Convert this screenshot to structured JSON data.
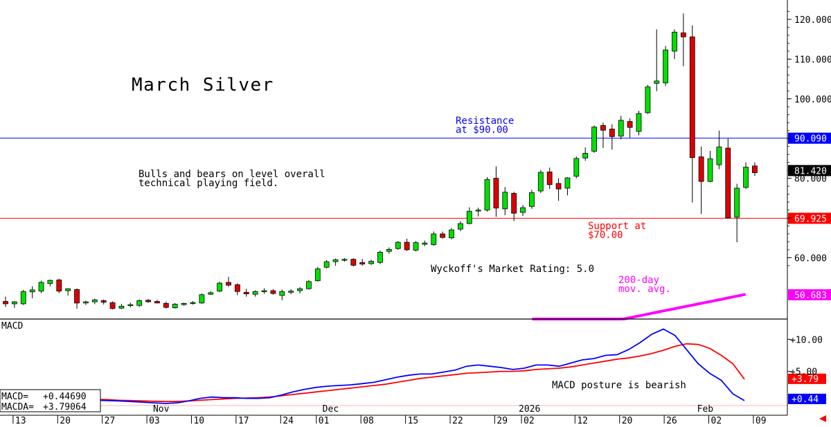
{
  "chart_data": {
    "type": "candlestick",
    "title": "March Silver",
    "price_axis": {
      "ticks": [
        120,
        110,
        100,
        90,
        80,
        70,
        60
      ],
      "tick_labels": [
        "120.000",
        "110.000",
        "100.000",
        "",
        "80.000",
        "",
        "60.000"
      ]
    },
    "candles": [
      {
        "o": 49.0,
        "h": 50.2,
        "l": 47.6,
        "c": 48.4
      },
      {
        "o": 48.4,
        "h": 49.1,
        "l": 47.4,
        "c": 48.9
      },
      {
        "o": 48.4,
        "h": 51.9,
        "l": 48.1,
        "c": 51.5
      },
      {
        "o": 51.4,
        "h": 52.8,
        "l": 49.8,
        "c": 51.9
      },
      {
        "o": 51.6,
        "h": 54.2,
        "l": 51.1,
        "c": 53.8
      },
      {
        "o": 53.5,
        "h": 54.5,
        "l": 52.8,
        "c": 54.3
      },
      {
        "o": 54.4,
        "h": 54.7,
        "l": 51.1,
        "c": 51.6
      },
      {
        "o": 51.7,
        "h": 52.3,
        "l": 50.5,
        "c": 52.2
      },
      {
        "o": 52.0,
        "h": 52.3,
        "l": 47.2,
        "c": 48.6
      },
      {
        "o": 48.6,
        "h": 49.2,
        "l": 48.1,
        "c": 48.9
      },
      {
        "o": 48.9,
        "h": 49.7,
        "l": 48.3,
        "c": 49.4
      },
      {
        "o": 49.2,
        "h": 49.5,
        "l": 48.2,
        "c": 48.8
      },
      {
        "o": 48.7,
        "h": 49.0,
        "l": 47.0,
        "c": 47.2
      },
      {
        "o": 47.3,
        "h": 48.4,
        "l": 47.1,
        "c": 47.8
      },
      {
        "o": 48.2,
        "h": 48.7,
        "l": 47.5,
        "c": 48.2
      },
      {
        "o": 48.0,
        "h": 49.5,
        "l": 47.6,
        "c": 49.2
      },
      {
        "o": 49.3,
        "h": 49.6,
        "l": 48.7,
        "c": 48.9
      },
      {
        "o": 49.0,
        "h": 49.4,
        "l": 48.5,
        "c": 48.6
      },
      {
        "o": 48.5,
        "h": 49.0,
        "l": 47.2,
        "c": 47.5
      },
      {
        "o": 47.4,
        "h": 48.6,
        "l": 47.2,
        "c": 48.3
      },
      {
        "o": 48.2,
        "h": 48.7,
        "l": 47.9,
        "c": 48.5
      },
      {
        "o": 48.5,
        "h": 49.1,
        "l": 48.2,
        "c": 48.7
      },
      {
        "o": 48.6,
        "h": 51.0,
        "l": 48.4,
        "c": 50.7
      },
      {
        "o": 50.8,
        "h": 51.6,
        "l": 50.6,
        "c": 51.2
      },
      {
        "o": 51.6,
        "h": 54.0,
        "l": 51.3,
        "c": 53.6
      },
      {
        "o": 53.8,
        "h": 55.2,
        "l": 52.7,
        "c": 53.1
      },
      {
        "o": 53.2,
        "h": 53.6,
        "l": 50.6,
        "c": 51.5
      },
      {
        "o": 51.3,
        "h": 52.2,
        "l": 50.2,
        "c": 50.9
      },
      {
        "o": 50.8,
        "h": 51.8,
        "l": 50.2,
        "c": 51.5
      },
      {
        "o": 51.5,
        "h": 52.3,
        "l": 50.9,
        "c": 51.7
      },
      {
        "o": 51.7,
        "h": 52.1,
        "l": 50.7,
        "c": 51.0
      },
      {
        "o": 50.5,
        "h": 52.0,
        "l": 49.3,
        "c": 51.5
      },
      {
        "o": 51.3,
        "h": 52.1,
        "l": 50.8,
        "c": 51.6
      },
      {
        "o": 51.7,
        "h": 52.6,
        "l": 51.0,
        "c": 52.2
      },
      {
        "o": 52.2,
        "h": 54.4,
        "l": 52.0,
        "c": 54.0
      },
      {
        "o": 54.2,
        "h": 57.7,
        "l": 54.0,
        "c": 57.2
      },
      {
        "o": 57.6,
        "h": 59.4,
        "l": 57.3,
        "c": 59.0
      },
      {
        "o": 59.0,
        "h": 59.8,
        "l": 58.0,
        "c": 59.5
      },
      {
        "o": 59.5,
        "h": 59.9,
        "l": 59.0,
        "c": 59.6
      },
      {
        "o": 59.6,
        "h": 59.9,
        "l": 57.8,
        "c": 58.1
      },
      {
        "o": 58.8,
        "h": 59.7,
        "l": 58.0,
        "c": 58.4
      },
      {
        "o": 58.5,
        "h": 59.5,
        "l": 58.2,
        "c": 59.1
      },
      {
        "o": 58.8,
        "h": 61.8,
        "l": 58.4,
        "c": 61.4
      },
      {
        "o": 61.6,
        "h": 62.6,
        "l": 61.0,
        "c": 62.1
      },
      {
        "o": 62.3,
        "h": 64.2,
        "l": 62.0,
        "c": 63.9
      },
      {
        "o": 63.9,
        "h": 64.8,
        "l": 61.7,
        "c": 62.0
      },
      {
        "o": 61.9,
        "h": 64.2,
        "l": 61.6,
        "c": 63.8
      },
      {
        "o": 63.4,
        "h": 64.3,
        "l": 62.9,
        "c": 63.7
      },
      {
        "o": 63.3,
        "h": 66.6,
        "l": 63.0,
        "c": 66.0
      },
      {
        "o": 66.0,
        "h": 66.6,
        "l": 64.8,
        "c": 65.1
      },
      {
        "o": 65.0,
        "h": 67.5,
        "l": 64.6,
        "c": 67.0
      },
      {
        "o": 67.2,
        "h": 69.2,
        "l": 66.7,
        "c": 68.6
      },
      {
        "o": 68.6,
        "h": 72.7,
        "l": 68.4,
        "c": 71.7
      },
      {
        "o": 71.9,
        "h": 72.6,
        "l": 70.4,
        "c": 72.0
      },
      {
        "o": 72.0,
        "h": 80.3,
        "l": 71.6,
        "c": 79.7
      },
      {
        "o": 80.0,
        "h": 83.0,
        "l": 70.3,
        "c": 72.5
      },
      {
        "o": 72.3,
        "h": 77.8,
        "l": 70.7,
        "c": 76.5
      },
      {
        "o": 76.2,
        "h": 76.6,
        "l": 69.2,
        "c": 71.2
      },
      {
        "o": 71.4,
        "h": 73.3,
        "l": 70.5,
        "c": 72.6
      },
      {
        "o": 72.9,
        "h": 77.1,
        "l": 72.3,
        "c": 76.4
      },
      {
        "o": 76.8,
        "h": 82.1,
        "l": 76.3,
        "c": 81.5
      },
      {
        "o": 81.6,
        "h": 82.7,
        "l": 77.3,
        "c": 78.4
      },
      {
        "o": 78.7,
        "h": 80.0,
        "l": 74.3,
        "c": 77.3
      },
      {
        "o": 77.5,
        "h": 80.3,
        "l": 75.7,
        "c": 80.1
      },
      {
        "o": 80.5,
        "h": 85.5,
        "l": 80.0,
        "c": 85.0
      },
      {
        "o": 85.1,
        "h": 87.8,
        "l": 84.4,
        "c": 86.3
      },
      {
        "o": 86.8,
        "h": 93.3,
        "l": 86.4,
        "c": 92.9
      },
      {
        "o": 93.3,
        "h": 94.0,
        "l": 87.6,
        "c": 92.1
      },
      {
        "o": 92.4,
        "h": 93.6,
        "l": 87.2,
        "c": 90.5
      },
      {
        "o": 90.6,
        "h": 95.7,
        "l": 89.8,
        "c": 94.6
      },
      {
        "o": 94.3,
        "h": 95.1,
        "l": 90.2,
        "c": 92.8
      },
      {
        "o": 91.8,
        "h": 97.0,
        "l": 90.8,
        "c": 96.3
      },
      {
        "o": 96.5,
        "h": 103.5,
        "l": 96.2,
        "c": 103.0
      },
      {
        "o": 103.9,
        "h": 117.5,
        "l": 101.9,
        "c": 104.5
      },
      {
        "o": 104.0,
        "h": 113.3,
        "l": 103.2,
        "c": 112.3
      },
      {
        "o": 112.0,
        "h": 117.5,
        "l": 110.0,
        "c": 116.8
      },
      {
        "o": 116.6,
        "h": 121.5,
        "l": 108.2,
        "c": 115.6
      },
      {
        "o": 115.6,
        "h": 118.5,
        "l": 73.9,
        "c": 85.2
      },
      {
        "o": 85.4,
        "h": 88.0,
        "l": 71.0,
        "c": 79.2
      },
      {
        "o": 79.2,
        "h": 86.9,
        "l": 79.0,
        "c": 84.9
      },
      {
        "o": 83.4,
        "h": 92.0,
        "l": 82.3,
        "c": 87.9
      },
      {
        "o": 87.6,
        "h": 90.0,
        "l": 69.8,
        "c": 70.0
      },
      {
        "o": 70.2,
        "h": 78.6,
        "l": 63.9,
        "c": 77.5
      },
      {
        "o": 77.7,
        "h": 84.0,
        "l": 77.3,
        "c": 82.8
      },
      {
        "o": 83.1,
        "h": 84.0,
        "l": 80.6,
        "c": 81.4
      }
    ],
    "moving_average": {
      "label_line1": "200-day",
      "label_line2": "mov. avg.",
      "values": [
        40.0,
        40.21,
        40.42,
        40.63,
        40.84,
        41.05,
        41.26,
        41.47,
        41.68,
        41.89,
        42.1,
        42.31,
        42.52,
        42.73,
        42.94,
        43.15,
        43.36,
        43.57,
        43.78,
        43.99,
        44.2,
        44.41,
        44.62,
        44.83,
        45.04,
        45.25,
        45.46,
        45.67,
        45.88,
        46.09,
        46.3,
        46.51,
        46.72,
        46.93,
        47.14,
        47.35,
        47.56,
        47.77,
        47.98,
        48.19,
        48.4,
        48.61,
        48.82,
        49.03,
        49.24,
        49.45,
        49.66,
        49.87,
        50.08,
        50.29,
        50.5,
        50.71
      ]
    },
    "horizontal_lines": [
      {
        "name": "resistance",
        "value": 90.09,
        "color": "#0000ff",
        "label": "90.090",
        "note1": "Resistance",
        "note2": "at $90.00"
      },
      {
        "name": "support",
        "value": 69.925,
        "color": "#ff0000",
        "label": "69.925",
        "note1": "Support at",
        "note2": "$70.00"
      }
    ],
    "last_price": {
      "value": 81.42,
      "label": "81.420"
    },
    "ma_last": {
      "value": 50.683,
      "label": "50.683"
    },
    "annotations": {
      "bulls_line1": "Bulls and bears on level overall",
      "bulls_line2": "technical playing field.",
      "wyckoff": "Wyckoff's Market Rating: 5.0"
    },
    "macd": {
      "title": "MACD",
      "axis_ticks": [
        {
          "value": 10,
          "label": "+10.00"
        },
        {
          "value": 5,
          "label": "+5.00"
        }
      ],
      "macd_values": [
        0.6,
        0.9,
        1.1,
        1.0,
        0.9,
        0.8,
        0.7,
        0.6,
        0.5,
        0.45,
        0.4,
        0.3,
        0.2,
        0.1,
        0.0,
        0.1,
        0.4,
        0.8,
        1.0,
        0.9,
        0.9,
        0.8,
        0.8,
        0.9,
        1.3,
        1.8,
        2.2,
        2.5,
        2.7,
        2.8,
        2.9,
        3.1,
        3.3,
        3.7,
        4.1,
        4.4,
        4.6,
        4.6,
        4.9,
        5.2,
        5.8,
        6.0,
        5.8,
        5.6,
        5.3,
        5.5,
        6.0,
        6.0,
        5.8,
        6.3,
        6.8,
        7.0,
        7.5,
        7.6,
        8.4,
        9.5,
        10.8,
        11.6,
        10.6,
        8.4,
        6.2,
        4.7,
        3.6,
        1.5,
        0.44
      ],
      "macda_values": [
        0.2,
        0.35,
        0.5,
        0.7,
        0.8,
        0.8,
        0.75,
        0.7,
        0.65,
        0.6,
        0.5,
        0.45,
        0.4,
        0.35,
        0.3,
        0.3,
        0.4,
        0.5,
        0.6,
        0.7,
        0.8,
        0.85,
        0.9,
        1.0,
        1.2,
        1.4,
        1.6,
        1.8,
        2.0,
        2.2,
        2.4,
        2.6,
        2.8,
        3.0,
        3.3,
        3.6,
        3.9,
        4.1,
        4.3,
        4.5,
        4.7,
        4.8,
        4.9,
        5.0,
        5.0,
        5.1,
        5.3,
        5.4,
        5.5,
        5.7,
        6.0,
        6.3,
        6.6,
        6.9,
        7.1,
        7.4,
        7.8,
        8.3,
        8.9,
        9.3,
        9.2,
        8.6,
        7.5,
        6.2,
        3.79
      ],
      "last_macd_label": "+0.44",
      "last_macda_label": "+3.79",
      "readout_macd_label": "MACD=",
      "readout_macd_value": "+0.44690",
      "readout_macda_label": "MACDA=",
      "readout_macda_value": "+3.79064",
      "note": "MACD posture is bearish"
    },
    "date_axis": [
      {
        "label": "13",
        "i": 1
      },
      {
        "label": "20",
        "i": 6
      },
      {
        "label": "27",
        "i": 11
      },
      {
        "label": "03",
        "i": 16
      },
      {
        "label": "10",
        "i": 21
      },
      {
        "label": "17",
        "i": 26
      },
      {
        "label": "24",
        "i": 31
      },
      {
        "label": "01",
        "i": 35
      },
      {
        "label": "08",
        "i": 40
      },
      {
        "label": "15",
        "i": 45
      },
      {
        "label": "22",
        "i": 50
      },
      {
        "label": "29",
        "i": 55
      },
      {
        "label": "02",
        "i": 58
      },
      {
        "label": "12",
        "i": 64
      },
      {
        "label": "20",
        "i": 69
      },
      {
        "label": "26",
        "i": 74
      },
      {
        "label": "02",
        "i": 79
      },
      {
        "label": "09",
        "i": 84
      }
    ],
    "month_labels": [
      {
        "label": "Nov",
        "i": 17
      },
      {
        "label": "Dec",
        "i": 36
      },
      {
        "label": "2026",
        "i": 58
      },
      {
        "label": "Feb",
        "i": 78
      }
    ]
  }
}
